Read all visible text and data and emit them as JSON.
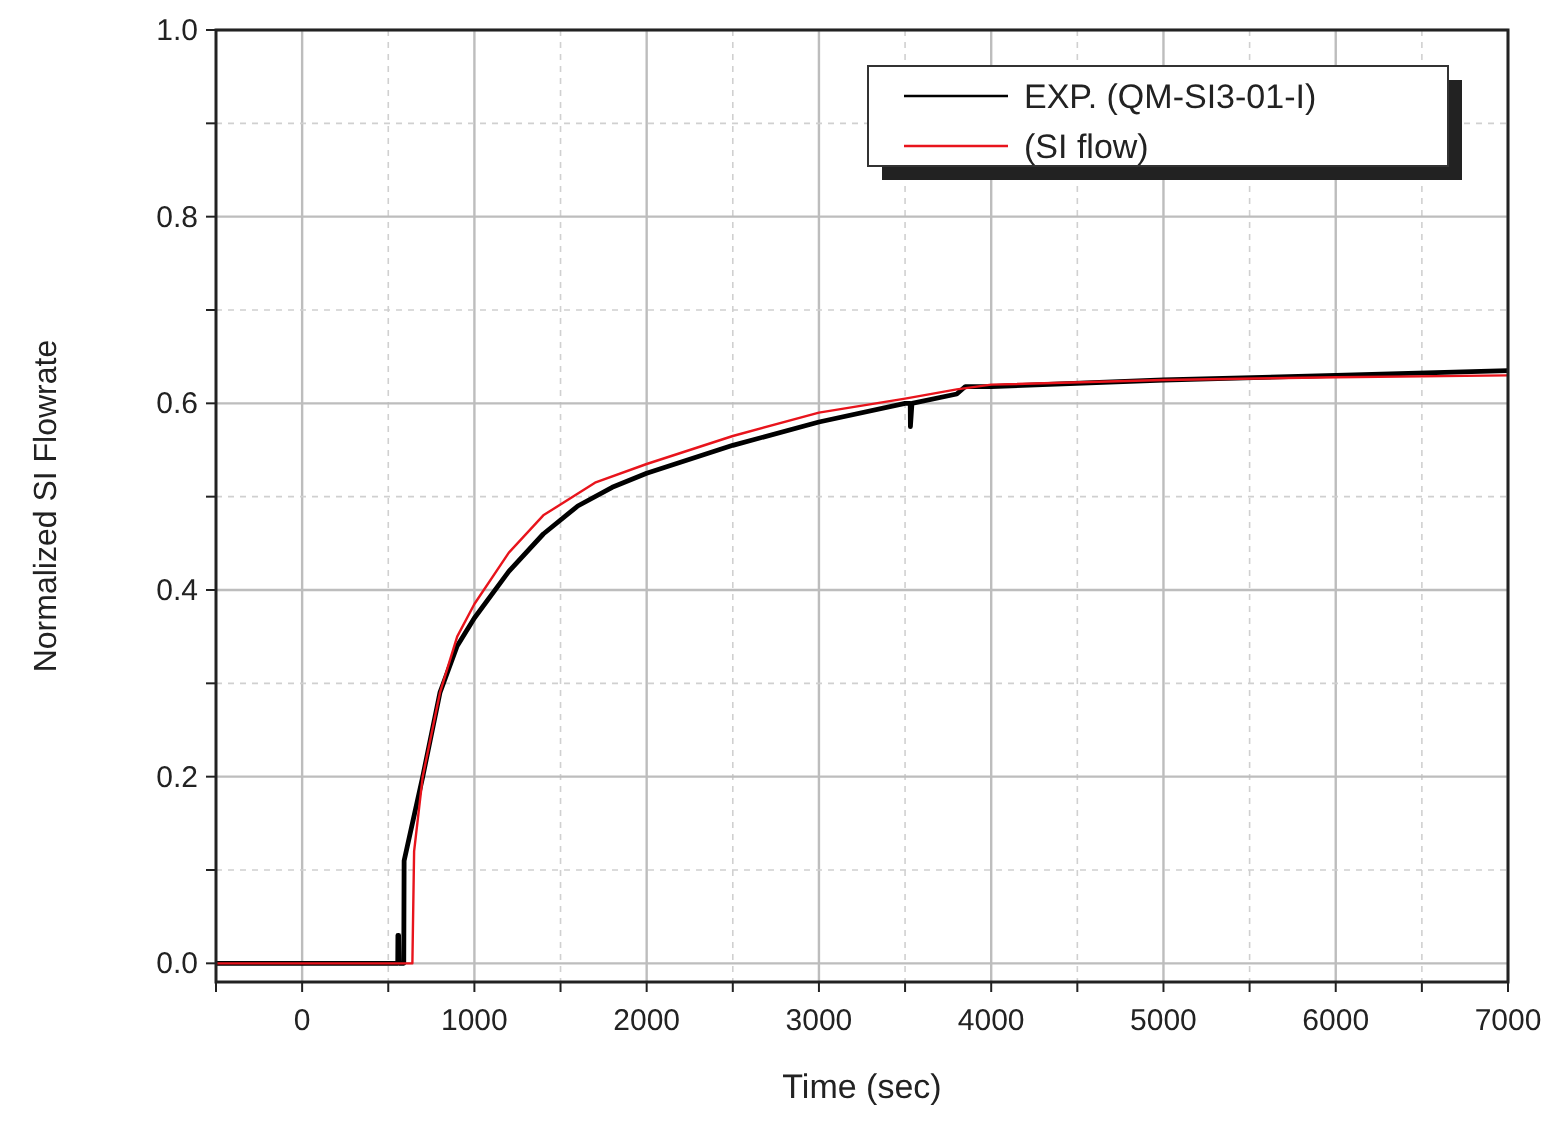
{
  "chart_data": {
    "type": "line",
    "xlabel": "Time (sec)",
    "ylabel": "Normalized SI Flowrate",
    "xlim": [
      -500,
      7000
    ],
    "ylim": [
      -0.02,
      1.0
    ],
    "xticks": [
      {
        "value": -500,
        "label": null
      },
      0,
      {
        "value": 500,
        "label": null
      },
      1000,
      {
        "value": 1500,
        "label": null
      },
      2000,
      {
        "value": 2500,
        "label": null
      },
      3000,
      {
        "value": 3500,
        "label": null
      },
      4000,
      {
        "value": 4500,
        "label": null
      },
      5000,
      {
        "value": 5500,
        "label": null
      },
      6000,
      {
        "value": 6500,
        "label": null
      },
      7000
    ],
    "yticks": [
      {
        "value": 0,
        "label": "0.0"
      },
      {
        "value": 0.1,
        "label": null
      },
      0.2,
      {
        "value": 0.3,
        "label": null
      },
      0.4,
      {
        "value": 0.5,
        "label": null
      },
      0.6,
      {
        "value": 0.7,
        "label": null
      },
      0.8,
      {
        "value": 0.9,
        "label": null
      },
      {
        "value": 1.0,
        "label": "1.0"
      }
    ],
    "grid": true,
    "legend": "top right",
    "line_style": "solid",
    "marker": "none",
    "series": [
      {
        "name": "EXP. (QM-SI3-01-I)",
        "color": "#000000",
        "x": [
          -500,
          555,
          556,
          560,
          562,
          575,
          590,
          592,
          700,
          800,
          900,
          1000,
          1200,
          1400,
          1600,
          1800,
          2000,
          2500,
          3000,
          3500,
          3530,
          3531,
          3540,
          3800,
          3850,
          4000,
          5000,
          6000,
          7000
        ],
        "values": [
          0,
          0,
          0.03,
          0.03,
          0,
          0,
          0,
          0.11,
          0.2,
          0.29,
          0.34,
          0.37,
          0.42,
          0.46,
          0.49,
          0.51,
          0.525,
          0.555,
          0.58,
          0.6,
          0.6,
          0.575,
          0.6,
          0.61,
          0.618,
          0.618,
          0.625,
          0.63,
          0.635
        ]
      },
      {
        "name": "(SI flow)",
        "color": "#e8141c",
        "x": [
          -500,
          640,
          650,
          700,
          800,
          900,
          1000,
          1200,
          1400,
          1700,
          2000,
          2500,
          3000,
          3500,
          3800,
          4000,
          5000,
          6000,
          7000
        ],
        "values": [
          0,
          0,
          0.12,
          0.2,
          0.29,
          0.35,
          0.385,
          0.44,
          0.48,
          0.515,
          0.535,
          0.565,
          0.59,
          0.605,
          0.615,
          0.62,
          0.625,
          0.628,
          0.63
        ]
      }
    ]
  }
}
